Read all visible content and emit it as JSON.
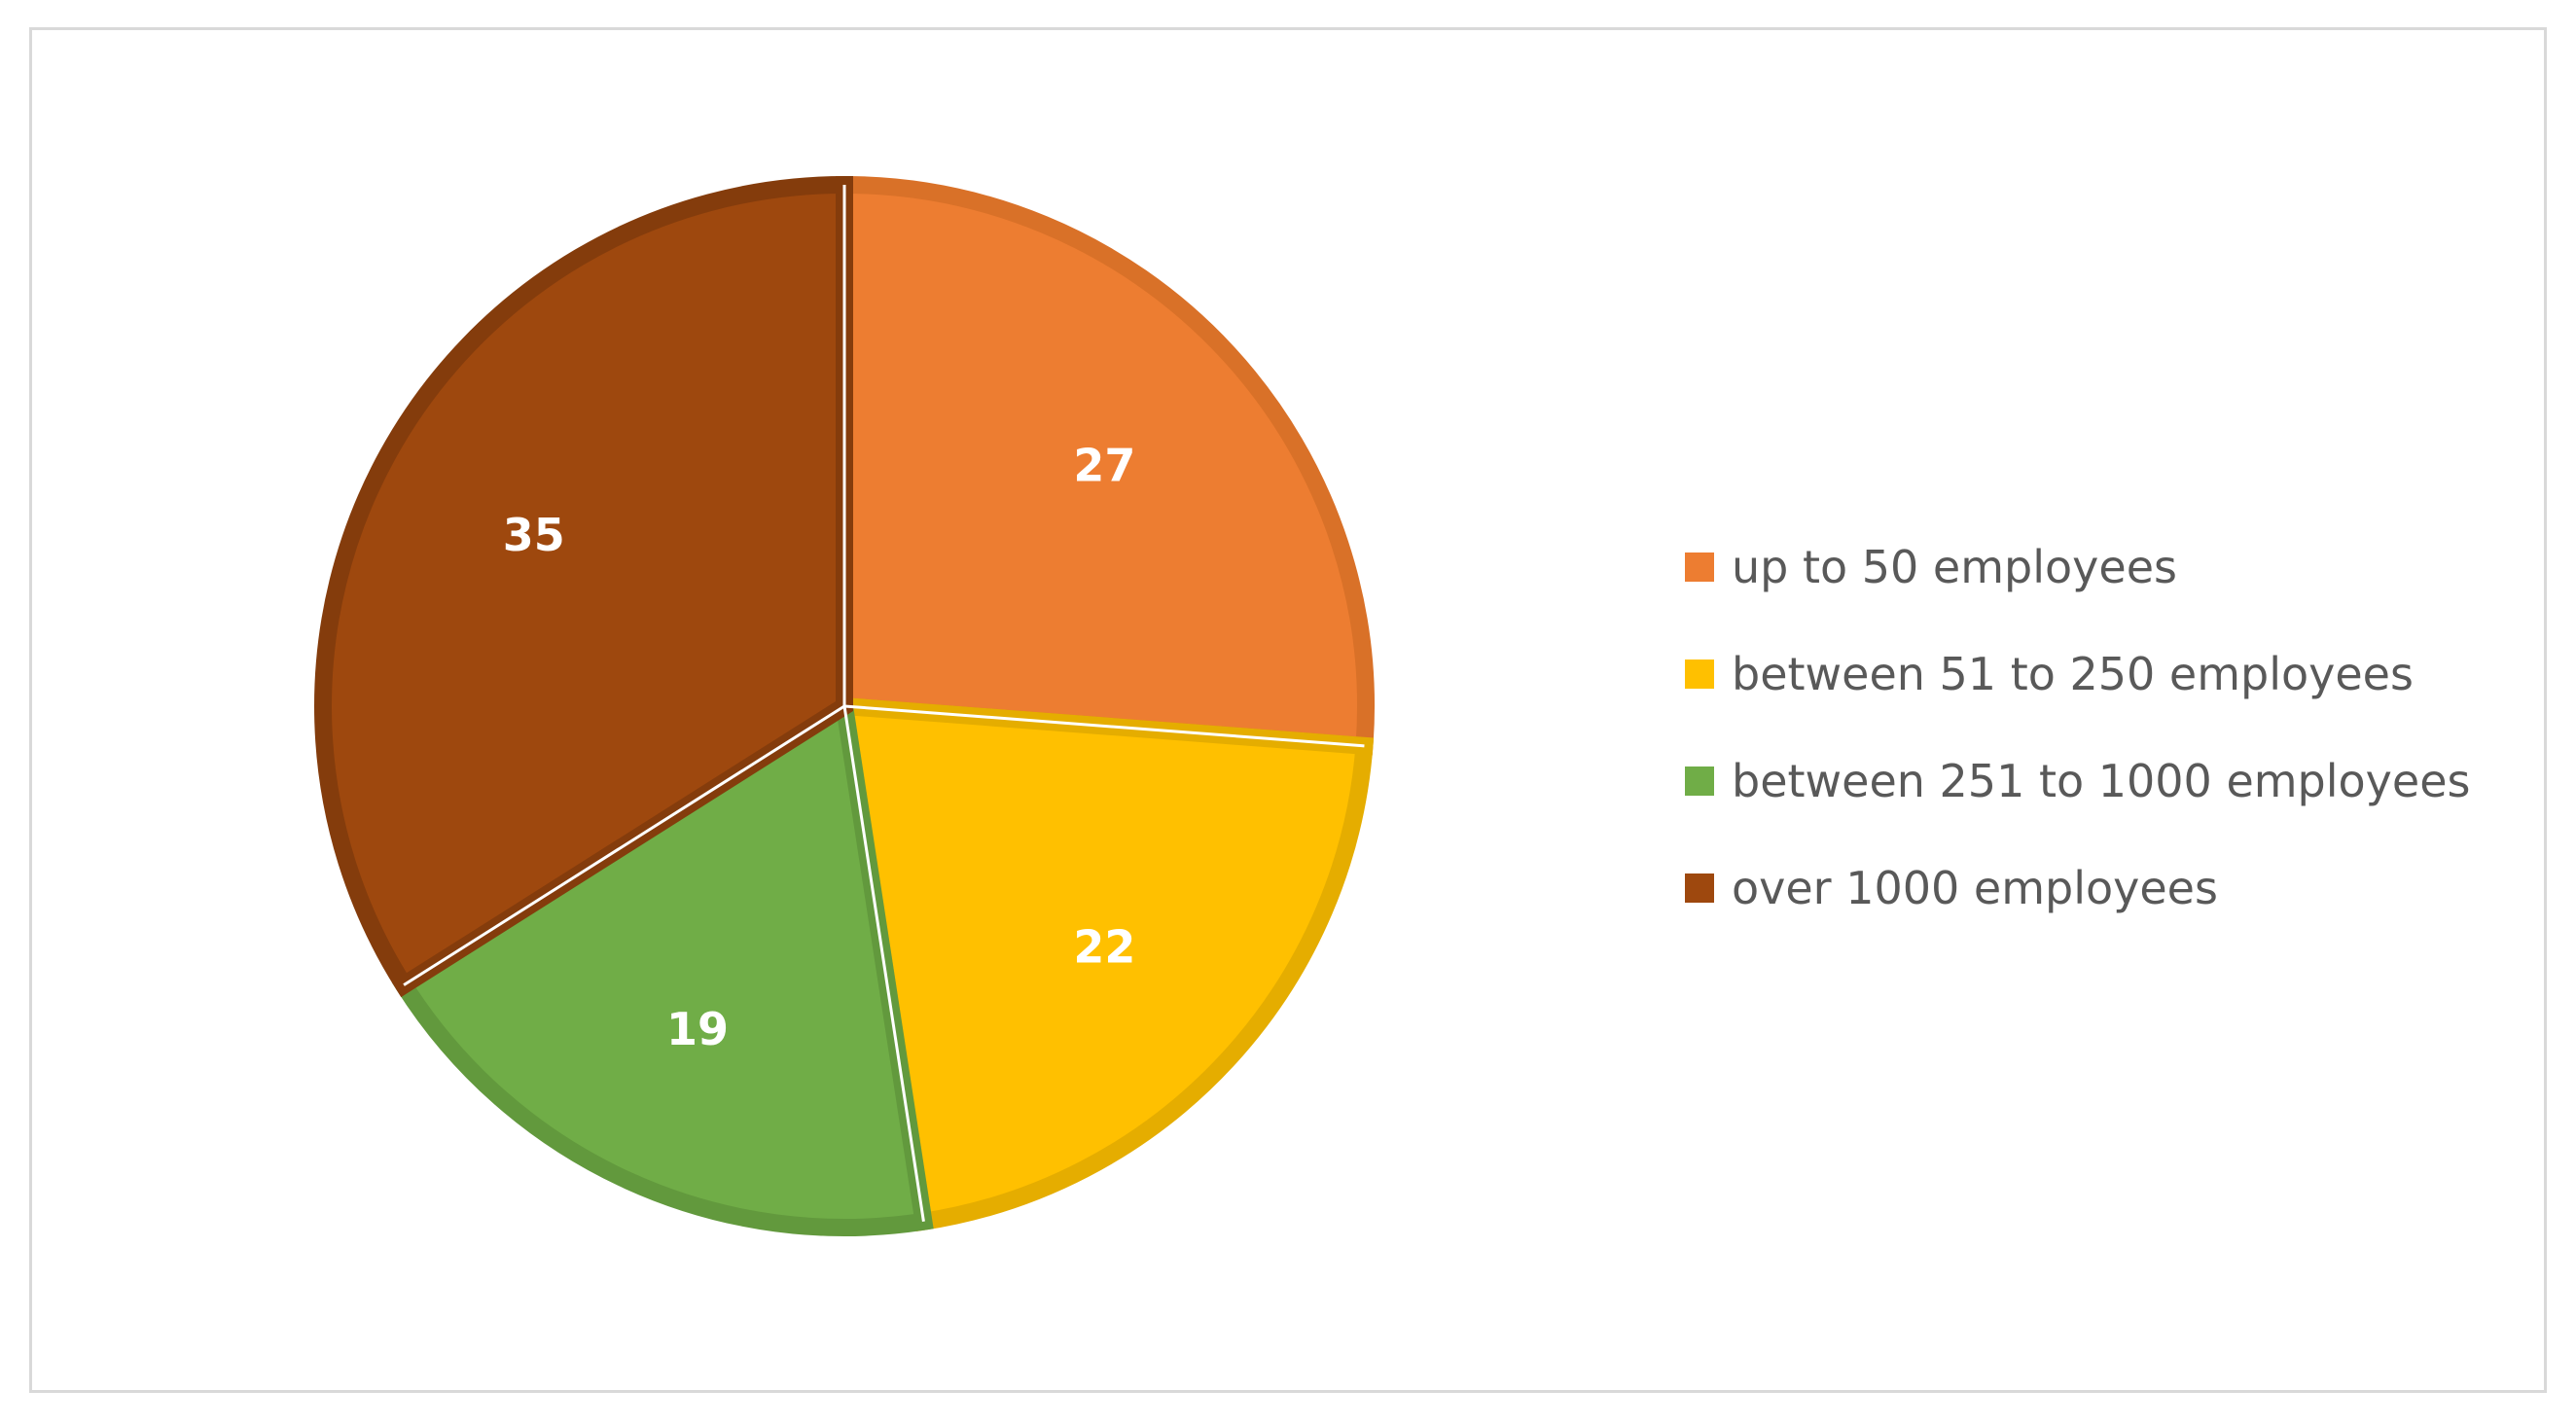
{
  "chart_data": {
    "type": "pie",
    "title": "",
    "categories": [
      "up to 50 employees",
      "between 51 to 250 employees",
      "between 251 to 1000 employees",
      "over 1000 employees"
    ],
    "values": [
      27,
      22,
      19,
      35
    ],
    "labels": [
      "27",
      "22",
      "19",
      "35"
    ],
    "colors": [
      "#ED7D31",
      "#FFC000",
      "#70AD47",
      "#9E480E"
    ],
    "border_colors": [
      "#D97128",
      "#E5AD00",
      "#62993D",
      "#843C0C"
    ],
    "start_angle": "12 o'clock",
    "direction": "clockwise",
    "legend_position": "right"
  }
}
